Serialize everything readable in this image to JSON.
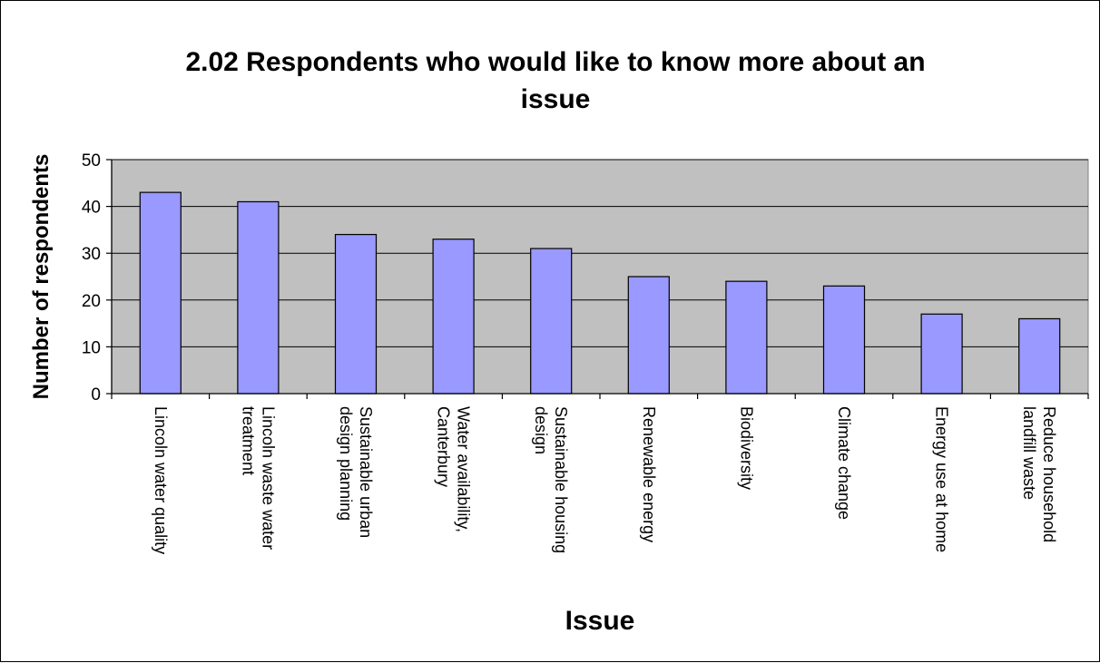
{
  "chart_data": {
    "type": "bar",
    "title_lines": [
      "2.02  Respondents who would like to know more about an",
      "issue"
    ],
    "xlabel": "Issue",
    "ylabel": "Number of respondents",
    "ylim": [
      0,
      50
    ],
    "yticks": [
      0,
      10,
      20,
      30,
      40,
      50
    ],
    "grid": true,
    "legend": "none",
    "colors": {
      "bar_fill": "#9999ff",
      "plot_bg": "#c0c0c0",
      "gridline": "#000000"
    },
    "categories": [
      [
        "Lincoln water quality"
      ],
      [
        "Lincoln waste water",
        "treatment"
      ],
      [
        "Sustainable urban",
        "design planning"
      ],
      [
        "Water availability,",
        "Canterbury"
      ],
      [
        "Sustainable housing",
        "design"
      ],
      [
        "Renewable energy"
      ],
      [
        "Biodiversity"
      ],
      [
        "Climate change"
      ],
      [
        "Energy use at home"
      ],
      [
        "Reduce household",
        "landfill waste"
      ]
    ],
    "values": [
      43,
      41,
      34,
      33,
      31,
      25,
      24,
      23,
      17,
      16
    ]
  }
}
